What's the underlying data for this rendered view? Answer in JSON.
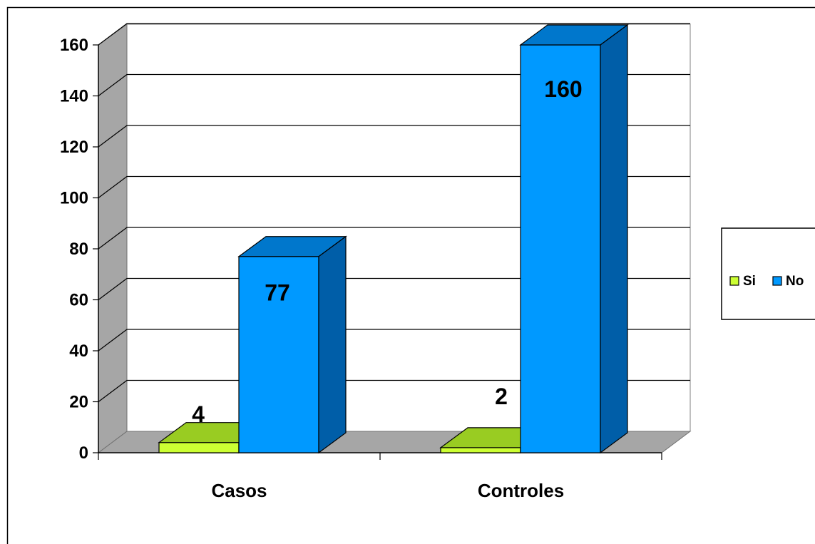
{
  "chart_data": {
    "type": "bar",
    "categories": [
      "Casos",
      "Controles"
    ],
    "series": [
      {
        "name": "Si",
        "values": [
          4,
          2
        ],
        "color": "#ccff33",
        "top_color": "#99cc22",
        "side_color": "#6b8f16"
      },
      {
        "name": "No",
        "values": [
          77,
          160
        ],
        "color": "#0099ff",
        "top_color": "#0077cc",
        "side_color": "#005ea8"
      }
    ],
    "data_labels": [
      [
        "4",
        "2"
      ],
      [
        "77",
        "160"
      ]
    ],
    "y_ticks": [
      "0",
      "20",
      "40",
      "60",
      "80",
      "100",
      "120",
      "140",
      "160"
    ],
    "ylim": [
      0,
      160
    ],
    "title": "",
    "xlabel": "",
    "ylabel": "",
    "grid": true,
    "legend_position": "right",
    "three_d": true
  }
}
